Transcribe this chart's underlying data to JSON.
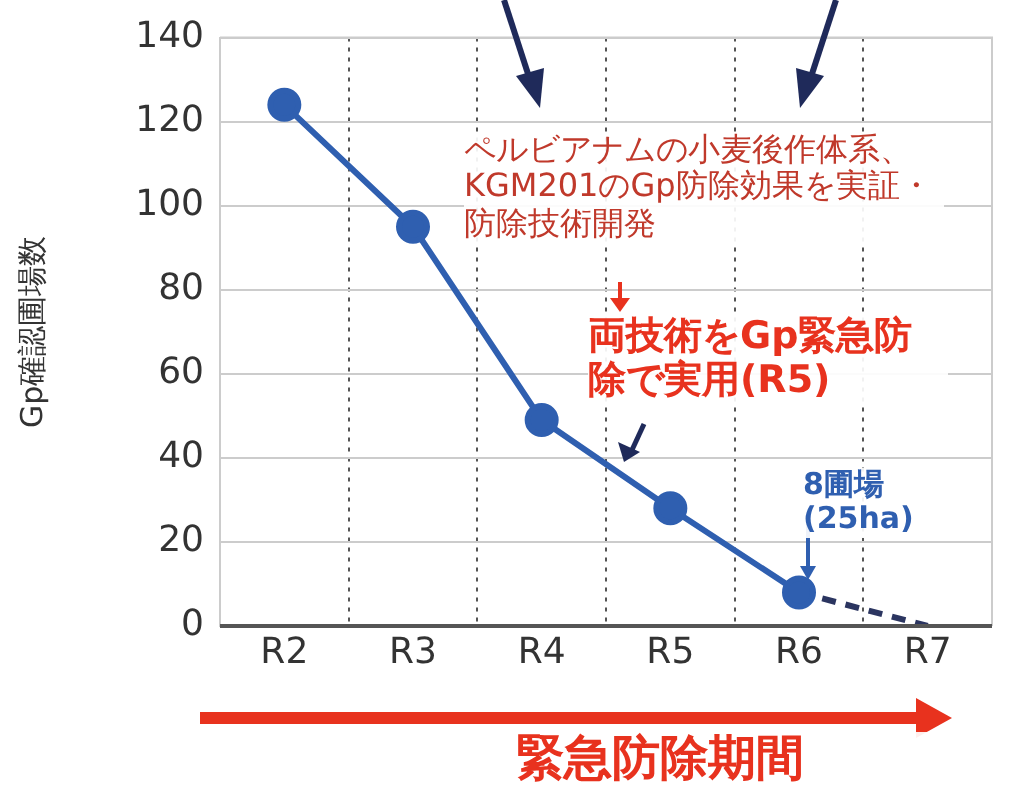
{
  "chart_data": {
    "type": "line",
    "ylabel": "Gp確認圃場数",
    "categories": [
      "R2",
      "R3",
      "R4",
      "R5",
      "R6",
      "R7"
    ],
    "ylim": [
      0,
      140
    ],
    "yticks": [
      0,
      20,
      40,
      60,
      80,
      100,
      120,
      140
    ],
    "grid": true,
    "series": [
      {
        "type": "line",
        "color": "#2f5fb0",
        "values": [
          124,
          95,
          49,
          28,
          8,
          null
        ],
        "marker": "circle",
        "line_style": "solid"
      },
      {
        "type": "line",
        "color": "#2b3560",
        "values": [
          null,
          null,
          null,
          null,
          8,
          0
        ],
        "marker": "none",
        "line_style": "dashed"
      }
    ],
    "annotations": [
      "ペルビアナムの小麦後作体系、KGM201のGp防除効果を実証・防除技術開発",
      "両技術をGp緊急防除で実用(R5)",
      {
        "text": "8圃場\n(25ha)",
        "x": "R6",
        "y": 8
      },
      "緊急防除期間"
    ]
  }
}
